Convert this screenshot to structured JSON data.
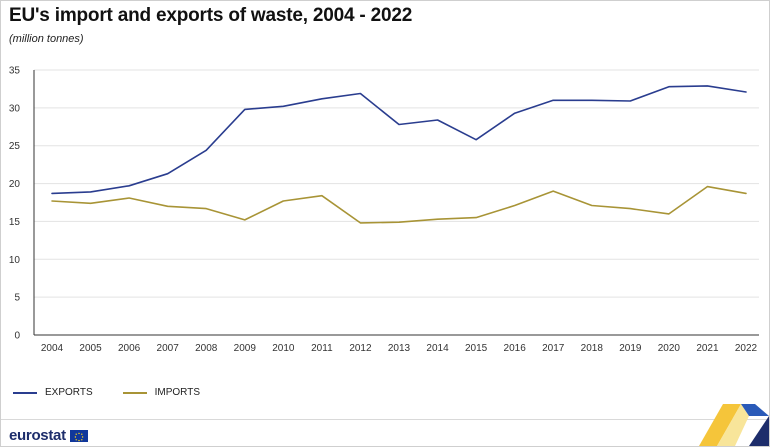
{
  "header": {
    "title": "EU's import and exports of waste, 2004 - 2022",
    "subtitle": "(million tonnes)"
  },
  "colors": {
    "exports": "#2a3d8f",
    "imports": "#a89436",
    "grid": "#e3e3e3",
    "axis": "#333333"
  },
  "chart_data": {
    "type": "line",
    "x": [
      "2004",
      "2005",
      "2006",
      "2007",
      "2008",
      "2009",
      "2010",
      "2011",
      "2012",
      "2013",
      "2014",
      "2015",
      "2016",
      "2017",
      "2018",
      "2019",
      "2020",
      "2021",
      "2022"
    ],
    "series": [
      {
        "name": "EXPORTS",
        "values": [
          18.7,
          18.9,
          19.7,
          21.3,
          24.4,
          29.8,
          30.2,
          31.2,
          31.9,
          27.8,
          28.4,
          25.8,
          29.3,
          31.0,
          31.0,
          30.9,
          32.8,
          32.9,
          32.1
        ]
      },
      {
        "name": "IMPORTS",
        "values": [
          17.7,
          17.4,
          18.1,
          17.0,
          16.7,
          15.2,
          17.7,
          18.4,
          14.8,
          14.9,
          15.3,
          15.5,
          17.1,
          19.0,
          17.1,
          16.7,
          16.0,
          19.6,
          18.7
        ]
      }
    ],
    "yticks": [
      0,
      5,
      10,
      15,
      20,
      25,
      30,
      35
    ],
    "ylim": [
      0,
      35
    ],
    "grid": "horizontal",
    "legend_position": "bottom-left"
  },
  "branding": {
    "logo_text": "eurostat"
  }
}
